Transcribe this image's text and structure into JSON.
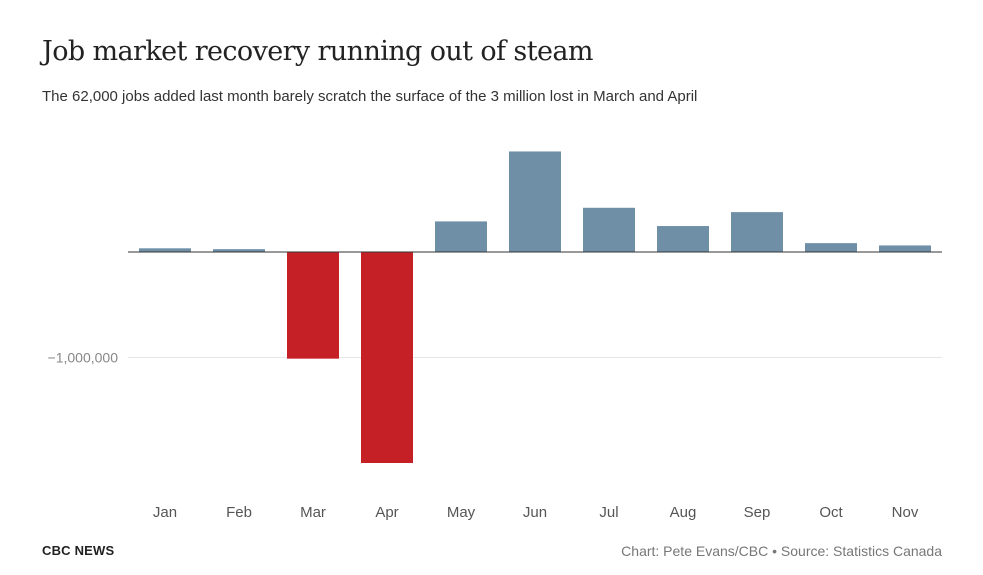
{
  "header": {
    "title": "Job market recovery running out of steam",
    "subtitle": "The 62,000 jobs added last month barely scratch the surface of the 3 million lost in March and April"
  },
  "footer": {
    "brand": "CBC NEWS",
    "credit": "Chart: Pete Evans/CBC • Source: Statistics Canada"
  },
  "colors": {
    "gain": "#6e8fa6",
    "loss": "#c52026",
    "axis": "#333333",
    "grid": "#e6e6e6",
    "tick_label": "#777777"
  },
  "chart_data": {
    "type": "bar",
    "title": "Job market recovery running out of steam",
    "categories": [
      "Jan",
      "Feb",
      "Mar",
      "Apr",
      "May",
      "Jun",
      "Jul",
      "Aug",
      "Sep",
      "Oct",
      "Nov"
    ],
    "values": [
      35000,
      27000,
      -1011000,
      -2000000,
      290000,
      953000,
      419000,
      246000,
      378000,
      84000,
      62000
    ],
    "ylim": [
      -2300000,
      1100000
    ],
    "yticks": [
      -1000000
    ],
    "ytick_labels": [
      "−1,000,000"
    ],
    "grid": true,
    "xlabel": "",
    "ylabel": ""
  }
}
